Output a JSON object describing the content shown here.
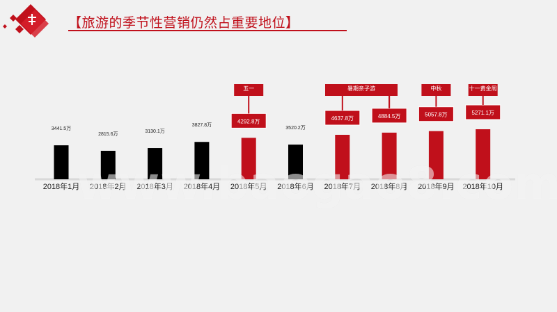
{
  "title": "【旅游的季节性营销仍然占重要地位】",
  "watermark": "www.baogao8.com",
  "colors": {
    "accent": "#c0101b",
    "normal_bar": "#000000",
    "background": "#f1f1f1"
  },
  "chart_data": {
    "type": "bar",
    "categories": [
      "2018年1月",
      "2018年2月",
      "2018年3月",
      "2018年4月",
      "2018年5月",
      "2018年6月",
      "2018年7月",
      "2018年8月",
      "2018年9月",
      "2018年10月"
    ],
    "values": [
      3441.5,
      2815.6,
      3130.1,
      3827.8,
      4292.8,
      3520.2,
      4637.8,
      4884.5,
      5057.8,
      5271.1
    ],
    "value_labels": [
      "3441.5万",
      "2815.6万",
      "3130.1万",
      "3827.8万",
      "4292.8万",
      "3520.2万",
      "4637.8万",
      "4884.5万",
      "5057.8万",
      "5271.1万"
    ],
    "highlighted": [
      false,
      false,
      false,
      false,
      true,
      false,
      true,
      true,
      true,
      true
    ],
    "callouts": [
      {
        "index": 4,
        "text": "五一"
      },
      {
        "index": 6,
        "text": "暑期亲子游"
      },
      {
        "index": 8,
        "text": "中秋"
      },
      {
        "index": 9,
        "text": "十一黄金周"
      }
    ],
    "xlabel": "",
    "ylabel": "",
    "ylim": [
      0,
      6000
    ],
    "grid": false,
    "legend": "none"
  }
}
